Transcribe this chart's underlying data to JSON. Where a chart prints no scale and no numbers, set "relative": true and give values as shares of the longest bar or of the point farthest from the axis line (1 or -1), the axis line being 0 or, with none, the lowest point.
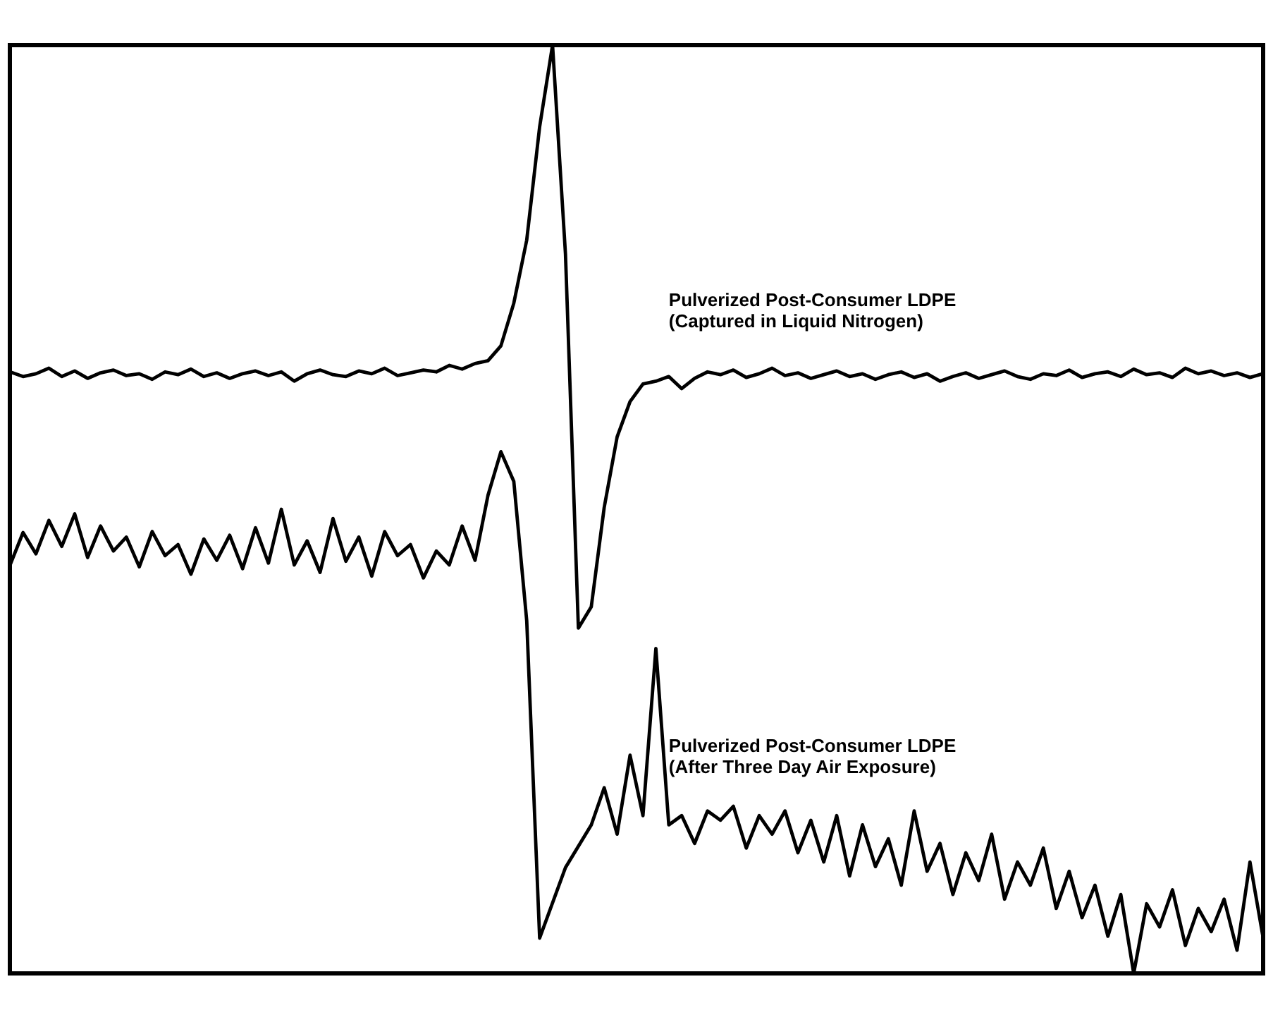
{
  "chart_data": {
    "type": "line",
    "relative": true,
    "categories": [
      null,
      null,
      null,
      null,
      null,
      null,
      null,
      null,
      null,
      null,
      null,
      null,
      null,
      null,
      null,
      null,
      null,
      null,
      null,
      null,
      null,
      null,
      null,
      null,
      null,
      null,
      null,
      null,
      null,
      null,
      null,
      null,
      null,
      null,
      null,
      null,
      null,
      null,
      null,
      null,
      null,
      null,
      null,
      null,
      null,
      null,
      null,
      null,
      null,
      null,
      null,
      null,
      null,
      null,
      null,
      null,
      null,
      null,
      null,
      null,
      null,
      null,
      null,
      null,
      null,
      null,
      null,
      null,
      null,
      null,
      null,
      null,
      null,
      null,
      null,
      null,
      null,
      null,
      null,
      null,
      null,
      null,
      null,
      null,
      null,
      null,
      null,
      null,
      null,
      null,
      null,
      null,
      null,
      null,
      null,
      null,
      null,
      null
    ],
    "series": [
      {
        "name": "Pulverized Post-Consumer LDPE\n(Captured in Liquid Nitrogen)",
        "color": "#000000",
        "values": [
          0.648,
          0.643,
          0.646,
          0.652,
          0.643,
          0.649,
          0.641,
          0.647,
          0.65,
          0.644,
          0.646,
          0.64,
          0.648,
          0.645,
          0.651,
          0.643,
          0.647,
          0.641,
          0.646,
          0.649,
          0.644,
          0.648,
          0.638,
          0.646,
          0.65,
          0.645,
          0.643,
          0.649,
          0.646,
          0.652,
          0.644,
          0.647,
          0.65,
          0.648,
          0.655,
          0.651,
          0.657,
          0.66,
          0.676,
          0.722,
          0.79,
          0.912,
          1,
          0.775,
          0.372,
          0.395,
          0.502,
          0.578,
          0.616,
          0.635,
          0.638,
          0.643,
          0.63,
          0.641,
          0.648,
          0.645,
          0.65,
          0.642,
          0.646,
          0.652,
          0.644,
          0.647,
          0.641,
          0.645,
          0.649,
          0.643,
          0.646,
          0.64,
          0.645,
          0.648,
          0.642,
          0.646,
          0.638,
          0.643,
          0.647,
          0.641,
          0.645,
          0.649,
          0.643,
          0.64,
          0.646,
          0.644,
          0.65,
          0.642,
          0.646,
          0.648,
          0.643,
          0.651,
          0.645,
          0.647,
          0.642,
          0.652,
          0.646,
          0.649,
          0.644,
          0.647,
          0.642,
          0.646
        ]
      },
      {
        "name": "Pulverized Post-Consumer LDPE\n(After Three Day Air Exposure)",
        "color": "#000000",
        "values": [
          0.44,
          0.475,
          0.452,
          0.488,
          0.46,
          0.495,
          0.448,
          0.482,
          0.455,
          0.47,
          0.438,
          0.476,
          0.45,
          0.462,
          0.43,
          0.468,
          0.445,
          0.472,
          0.436,
          0.48,
          0.442,
          0.5,
          0.44,
          0.466,
          0.432,
          0.49,
          0.444,
          0.47,
          0.428,
          0.476,
          0.45,
          0.462,
          0.426,
          0.455,
          0.44,
          0.482,
          0.445,
          0.515,
          0.562,
          0.53,
          0.38,
          0.038,
          0.076,
          0.114,
          0.137,
          0.16,
          0.2,
          0.15,
          0.235,
          0.17,
          0.35,
          0.16,
          0.17,
          0.14,
          0.175,
          0.165,
          0.18,
          0.135,
          0.17,
          0.15,
          0.175,
          0.13,
          0.165,
          0.12,
          0.17,
          0.105,
          0.16,
          0.115,
          0.145,
          0.095,
          0.175,
          0.11,
          0.14,
          0.085,
          0.13,
          0.1,
          0.15,
          0.08,
          0.12,
          0.095,
          0.135,
          0.07,
          0.11,
          0.06,
          0.095,
          0.04,
          0.085,
          0.0,
          0.075,
          0.05,
          0.09,
          0.03,
          0.07,
          0.045,
          0.08,
          0.025,
          0.12,
          0.04
        ]
      }
    ]
  }
}
